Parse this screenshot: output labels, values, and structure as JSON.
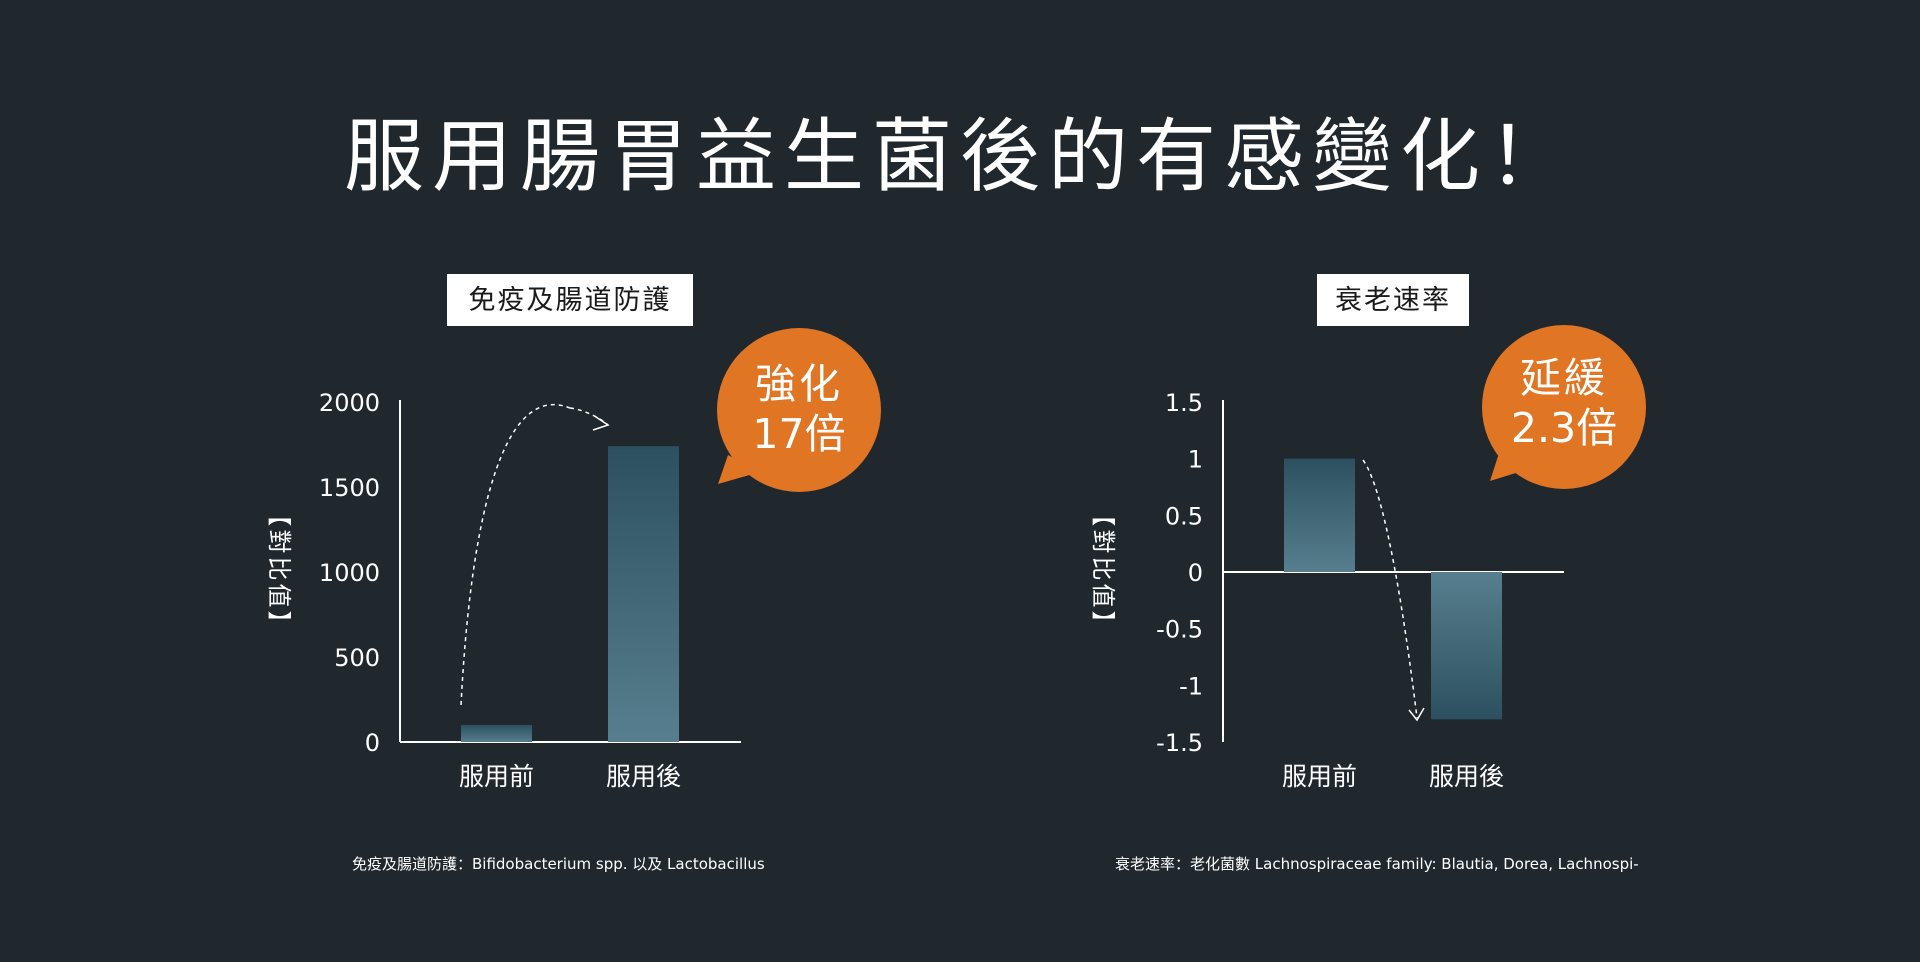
{
  "page_title": "服用腸胃益生菌後的有感變化！",
  "chart_data": [
    {
      "type": "bar",
      "title": "免疫及腸道防護",
      "ylabel": "【對比值】",
      "categories": [
        "服用前",
        "服用後"
      ],
      "values": [
        100,
        1740
      ],
      "ylim": [
        0,
        2000
      ],
      "yticks": [
        "2000",
        "1500",
        "1000",
        "500",
        "0"
      ],
      "yticks_values": [
        2000,
        1500,
        1000,
        500,
        0
      ],
      "callout": [
        "強化",
        "17倍"
      ],
      "footnote": "免疫及腸道防護：Bifidobacterium spp. 以及 Lactobacillus"
    },
    {
      "type": "bar",
      "title": "衰老速率",
      "ylabel": "【對比值】",
      "categories": [
        "服用前",
        "服用後"
      ],
      "values": [
        1,
        -1.3
      ],
      "ylim": [
        -1.5,
        1.5
      ],
      "yticks": [
        "1.5",
        "1",
        "0.5",
        "0",
        "-0.5",
        "-1",
        "-1.5"
      ],
      "yticks_values": [
        1.5,
        1,
        0.5,
        0,
        -0.5,
        -1,
        -1.5
      ],
      "callout": [
        "延緩",
        "2.3倍"
      ],
      "footnote": "衰老速率：老化菌數 Lachnospiraceae family: Blautia, Dorea, Lachnospi-"
    }
  ],
  "colors": {
    "background": "#20282e",
    "bar_top": "#2c5060",
    "bar_bottom": "#587f8f",
    "callout": "#e07524",
    "axis": "#ffffff"
  }
}
